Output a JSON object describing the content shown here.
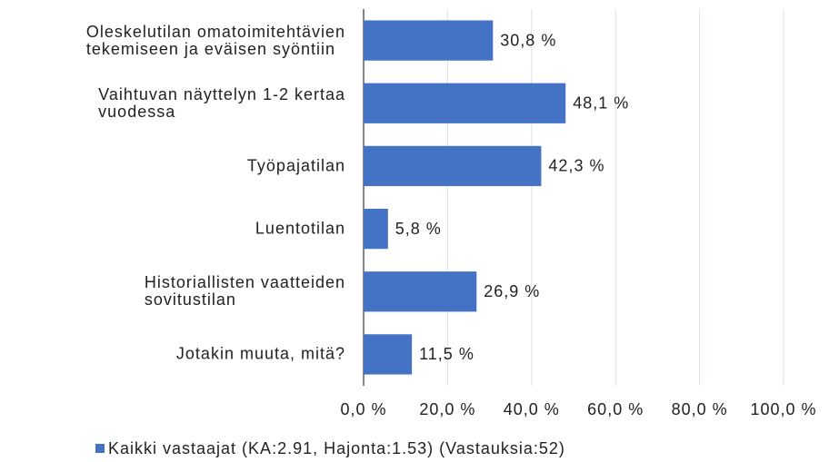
{
  "chart_data": {
    "type": "bar",
    "orientation": "horizontal",
    "categories": [
      "Oleskelutilan omatoimitehtävien\ntekemiseen ja eväisen syöntiin",
      "Vaihtuvan näyttelyn 1-2 kertaa\nvuodessa",
      "Työpajatilan",
      "Luentotilan",
      "Historiallisten vaatteiden\nsovitustilan",
      "Jotakin muuta, mitä?"
    ],
    "series": [
      {
        "name": "Kaikki vastaajat (KA:2.91, Hajonta:1.53) (Vastauksia:52)",
        "color": "#4472c4",
        "values": [
          30.8,
          48.1,
          42.3,
          5.8,
          26.9,
          11.5
        ],
        "value_labels": [
          "30,8 %",
          "48,1 %",
          "42,3 %",
          "5,8 %",
          "26,9 %",
          "11,5 %"
        ]
      }
    ],
    "xlim": [
      0,
      100
    ],
    "xticks": [
      {
        "value": 0,
        "label": "0,0 %"
      },
      {
        "value": 20,
        "label": "20,0 %"
      },
      {
        "value": 40,
        "label": "40,0 %"
      },
      {
        "value": 60,
        "label": "60,0 %"
      },
      {
        "value": 80,
        "label": "80,0 %"
      },
      {
        "value": 100,
        "label": "100,0 %"
      }
    ],
    "grid": true,
    "legend": "bottom"
  }
}
